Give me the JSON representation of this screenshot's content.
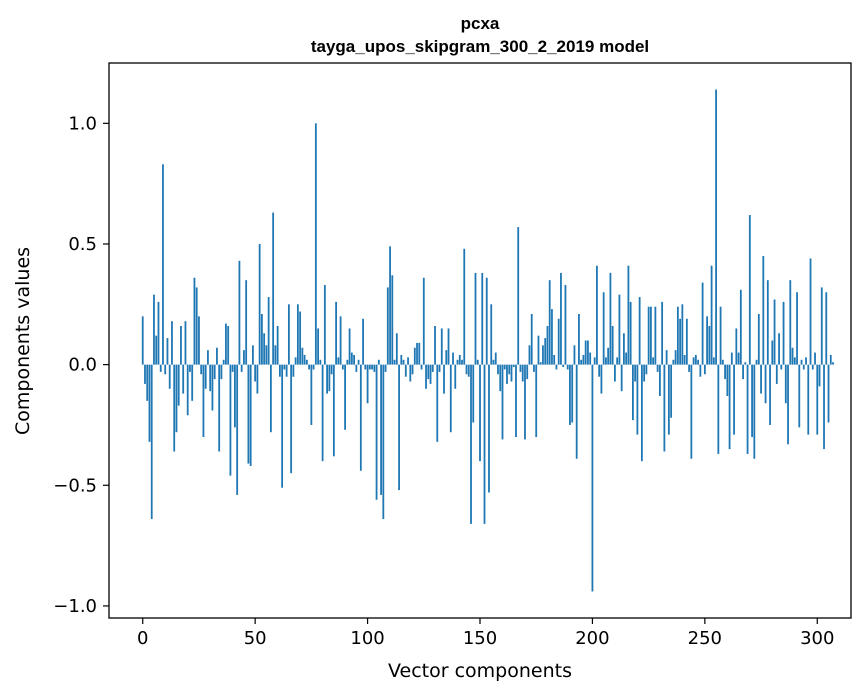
{
  "chart_data": {
    "type": "bar",
    "title": "pcxa",
    "subtitle": "tayga_upos_skipgram_300_2_2019 model",
    "xlabel": "Vector components",
    "ylabel": "Components values",
    "xlim": [
      -15,
      315
    ],
    "ylim": [
      -1.05,
      1.25
    ],
    "xticks": [
      0,
      50,
      100,
      150,
      200,
      250,
      300
    ],
    "xtick_labels": [
      "0",
      "50",
      "100",
      "150",
      "200",
      "250",
      "300"
    ],
    "yticks": [
      -1.0,
      -0.5,
      0.0,
      0.5,
      1.0
    ],
    "ytick_labels": [
      "−1.0",
      "−0.5",
      "0.0",
      "0.5",
      "1.0"
    ],
    "grid": false,
    "bar_color": "#1f77b4",
    "x_start": 0,
    "values": [
      0.2,
      -0.08,
      -0.15,
      -0.32,
      -0.64,
      0.29,
      0.12,
      0.26,
      -0.03,
      0.83,
      -0.04,
      0.11,
      -0.1,
      0.18,
      -0.36,
      -0.28,
      -0.17,
      0.16,
      -0.12,
      0.18,
      -0.21,
      -0.03,
      -0.15,
      0.36,
      0.32,
      0.2,
      -0.04,
      -0.3,
      -0.1,
      0.06,
      -0.11,
      -0.19,
      -0.06,
      0.07,
      -0.36,
      -0.06,
      0.02,
      0.17,
      0.16,
      -0.46,
      -0.03,
      -0.26,
      -0.54,
      0.43,
      -0.03,
      0.06,
      0.35,
      -0.41,
      -0.42,
      0.08,
      -0.07,
      -0.12,
      0.5,
      0.21,
      0.13,
      0.08,
      0.28,
      -0.28,
      0.63,
      0.08,
      0.16,
      -0.05,
      -0.51,
      -0.02,
      -0.05,
      0.25,
      -0.45,
      -0.05,
      0.03,
      0.25,
      0.22,
      0.07,
      0.04,
      0.02,
      -0.02,
      -0.25,
      -0.02,
      1.0,
      0.15,
      0.02,
      -0.4,
      0.33,
      -0.12,
      -0.11,
      -0.04,
      -0.38,
      0.26,
      0.03,
      0.2,
      -0.02,
      -0.27,
      0.02,
      0.15,
      0.05,
      0.04,
      -0.03,
      0.02,
      -0.44,
      0.19,
      -0.02,
      -0.16,
      -0.02,
      -0.02,
      -0.03,
      -0.56,
      0.02,
      -0.54,
      -0.64,
      -0.03,
      0.32,
      0.49,
      0.37,
      0.02,
      0.13,
      -0.52,
      0.04,
      0.02,
      -0.05,
      0.03,
      -0.07,
      -0.04,
      0.07,
      0.09,
      0.09,
      -0.02,
      0.36,
      -0.1,
      -0.06,
      -0.08,
      -0.03,
      0.16,
      -0.32,
      -0.03,
      0.15,
      -0.12,
      0.06,
      0.15,
      -0.28,
      0.05,
      -0.1,
      0.02,
      0.04,
      0.02,
      0.48,
      -0.04,
      -0.05,
      -0.66,
      -0.24,
      0.38,
      0.02,
      -0.4,
      0.38,
      -0.66,
      0.36,
      -0.53,
      0.25,
      0.02,
      0.05,
      -0.04,
      -0.11,
      -0.31,
      -0.02,
      -0.08,
      -0.04,
      -0.07,
      -0.01,
      -0.3,
      0.57,
      -0.03,
      -0.07,
      -0.31,
      -0.06,
      0.08,
      0.21,
      -0.03,
      -0.3,
      0.12,
      0.01,
      0.08,
      0.11,
      0.16,
      0.35,
      0.23,
      0.04,
      -0.02,
      0.19,
      0.38,
      -0.01,
      0.33,
      -0.02,
      -0.25,
      -0.24,
      0.08,
      -0.39,
      0.21,
      0.02,
      0.04,
      0.1,
      0.1,
      0.05,
      -0.94,
      0.03,
      0.41,
      -0.05,
      -0.12,
      0.3,
      0.03,
      0.07,
      0.38,
      0.16,
      -0.07,
      0.03,
      0.29,
      -0.11,
      0.13,
      0.05,
      0.41,
      0.26,
      -0.23,
      -0.07,
      -0.29,
      0.28,
      -0.4,
      -0.07,
      -0.04,
      0.24,
      0.24,
      0.03,
      0.24,
      -0.03,
      -0.13,
      0.26,
      -0.36,
      0.06,
      -0.29,
      -0.22,
      0.02,
      0.06,
      0.24,
      0.19,
      0.25,
      0.04,
      0.19,
      -0.03,
      -0.39,
      0.03,
      0.04,
      0.02,
      -0.05,
      0.34,
      -0.04,
      0.2,
      0.16,
      0.41,
      0.03,
      1.14,
      -0.37,
      0.24,
      0.02,
      -0.06,
      -0.13,
      -0.35,
      0.05,
      -0.29,
      0.15,
      0.05,
      0.31,
      -0.06,
      0.01,
      -0.37,
      0.62,
      -0.3,
      -0.39,
      0.02,
      0.21,
      -0.12,
      0.45,
      -0.16,
      0.35,
      -0.25,
      0.1,
      0.27,
      -0.08,
      0.13,
      -0.02,
      0.26,
      -0.16,
      -0.33,
      0.35,
      0.07,
      0.03,
      0.3,
      -0.26,
      0.02,
      -0.02,
      0.03,
      -0.29,
      0.44,
      -0.02,
      0.05,
      -0.29,
      -0.09,
      0.32,
      -0.35,
      0.3,
      -0.24,
      0.04,
      0.01
    ]
  }
}
